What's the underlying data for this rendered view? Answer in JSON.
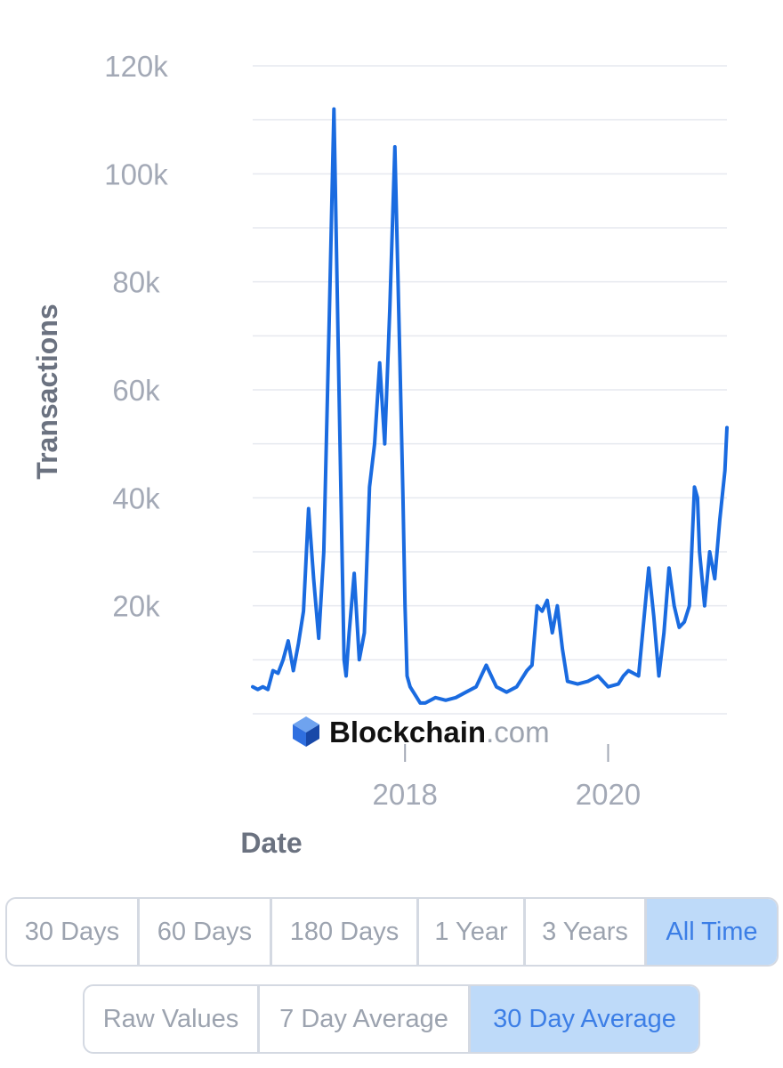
{
  "chart_data": {
    "type": "line",
    "ylabel": "Transactions",
    "xlabel": "Date",
    "yticks": [
      "120k",
      "100k",
      "80k",
      "60k",
      "40k",
      "20k"
    ],
    "ytick_values": [
      120000,
      100000,
      80000,
      60000,
      40000,
      20000
    ],
    "xticks": [
      "2018",
      "2020"
    ],
    "xtick_values": [
      2018.0,
      2020.0
    ],
    "ylim": [
      0,
      120000
    ],
    "xlim": [
      2016.5,
      2021.17
    ],
    "grid": true,
    "line_color": "#1a6be0",
    "series": [
      {
        "x": [
          2016.5,
          2016.55,
          2016.6,
          2016.65,
          2016.7,
          2016.75,
          2016.8,
          2016.85,
          2016.9,
          2016.95,
          2017.0,
          2017.05,
          2017.1,
          2017.15,
          2017.2,
          2017.25,
          2017.3,
          2017.35,
          2017.38,
          2017.4,
          2017.42,
          2017.45,
          2017.5,
          2017.55,
          2017.6,
          2017.65,
          2017.7,
          2017.75,
          2017.8,
          2017.85,
          2017.9,
          2017.95,
          2017.98,
          2018.0,
          2018.02,
          2018.05,
          2018.1,
          2018.15,
          2018.2,
          2018.3,
          2018.4,
          2018.5,
          2018.6,
          2018.7,
          2018.8,
          2018.9,
          2019.0,
          2019.1,
          2019.2,
          2019.25,
          2019.3,
          2019.35,
          2019.4,
          2019.45,
          2019.5,
          2019.55,
          2019.6,
          2019.7,
          2019.8,
          2019.9,
          2020.0,
          2020.1,
          2020.15,
          2020.2,
          2020.3,
          2020.4,
          2020.45,
          2020.5,
          2020.55,
          2020.6,
          2020.65,
          2020.7,
          2020.75,
          2020.8,
          2020.85,
          2020.88,
          2020.9,
          2020.95,
          2021.0,
          2021.05,
          2021.1,
          2021.15,
          2021.17
        ],
        "y": [
          5000,
          4500,
          5000,
          4500,
          8000,
          7500,
          10000,
          13500,
          8000,
          13000,
          19000,
          38000,
          25000,
          14000,
          30000,
          70000,
          112000,
          60000,
          30000,
          10000,
          7000,
          15000,
          26000,
          10000,
          15000,
          42000,
          50000,
          65000,
          50000,
          75000,
          105000,
          65000,
          40000,
          20000,
          7000,
          5000,
          3500,
          2000,
          2000,
          3000,
          2500,
          3000,
          4000,
          5000,
          9000,
          5000,
          4000,
          5000,
          8000,
          9000,
          20000,
          19000,
          21000,
          15000,
          20000,
          12000,
          6000,
          5500,
          6000,
          7000,
          5000,
          5500,
          7000,
          8000,
          7000,
          27000,
          18000,
          7000,
          15000,
          27000,
          20000,
          16000,
          17000,
          20000,
          42000,
          40000,
          30000,
          20000,
          30000,
          25000,
          36000,
          45000,
          53000
        ]
      }
    ]
  },
  "brand": {
    "name": "Blockchain",
    "suffix": ".com"
  },
  "timespan_buttons": [
    {
      "label": "30 Days",
      "active": false
    },
    {
      "label": "60 Days",
      "active": false
    },
    {
      "label": "180 Days",
      "active": false
    },
    {
      "label": "1 Year",
      "active": false
    },
    {
      "label": "3 Years",
      "active": false
    },
    {
      "label": "All Time",
      "active": true
    }
  ],
  "average_buttons": [
    {
      "label": "Raw Values",
      "active": false
    },
    {
      "label": "7 Day Average",
      "active": false
    },
    {
      "label": "30 Day Average",
      "active": true
    }
  ],
  "colors": {
    "accent": "#1a6be0",
    "active_bg": "#bedaf9",
    "active_text": "#3c7ee6",
    "muted_text": "#9ca3af",
    "border": "#d4d9e2",
    "logo_blue": "#2f6fe0"
  },
  "icons": {
    "brand_logo": "blockchain-cube-icon"
  }
}
